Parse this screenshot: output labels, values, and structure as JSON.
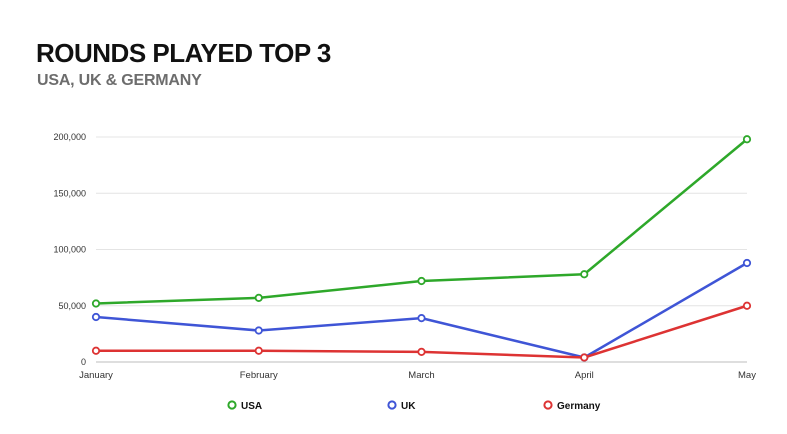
{
  "header": {
    "title": "ROUNDS PLAYED TOP 3",
    "subtitle": "USA, UK & GERMANY"
  },
  "chart_data": {
    "type": "line",
    "title": "ROUNDS PLAYED TOP 3",
    "subtitle": "USA, UK & GERMANY",
    "categories": [
      "January",
      "February",
      "March",
      "April",
      "May"
    ],
    "ylim": [
      0,
      200000
    ],
    "yticks": [
      0,
      50000,
      100000,
      150000,
      200000
    ],
    "ytick_labels": [
      "0",
      "50,000",
      "100,000",
      "150,000",
      "200,000"
    ],
    "grid": true,
    "legend": "bottom",
    "series": [
      {
        "name": "USA",
        "color": "#2ea82a",
        "values": [
          52000,
          57000,
          72000,
          78000,
          198000
        ]
      },
      {
        "name": "UK",
        "color": "#3f55d6",
        "values": [
          40000,
          28000,
          39000,
          4000,
          88000
        ]
      },
      {
        "name": "Germany",
        "color": "#dd3333",
        "values": [
          10000,
          10000,
          9000,
          4000,
          50000
        ]
      }
    ]
  }
}
